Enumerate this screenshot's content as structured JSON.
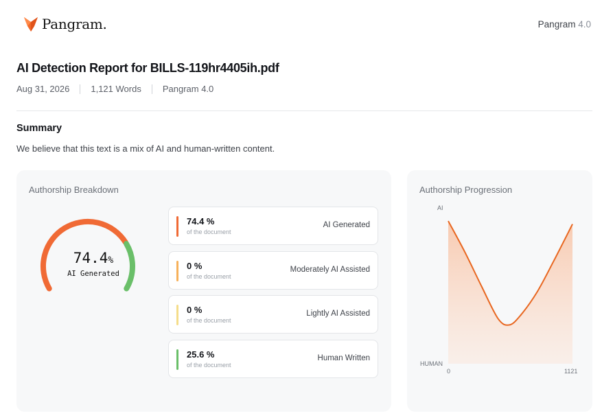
{
  "header": {
    "brand": "Pangram.",
    "version_name": "Pangram",
    "version_num": "4.0"
  },
  "report": {
    "title": "AI Detection Report for BILLS-119hr4405ih.pdf",
    "date": "Aug 31, 2026",
    "words": "1,121 Words",
    "model": "Pangram 4.0"
  },
  "summary": {
    "heading": "Summary",
    "text": "We believe that this text is a mix of AI and human-written content."
  },
  "breakdown": {
    "title": "Authorship Breakdown",
    "gauge_value": "74.4",
    "gauge_unit": "%",
    "gauge_label": "AI Generated",
    "ai_fraction": 0.744,
    "items": [
      {
        "value": "74.4 %",
        "sub": "of the document",
        "label": "AI Generated",
        "color": "#f06a35"
      },
      {
        "value": "0 %",
        "sub": "of the document",
        "label": "Moderately AI Assisted",
        "color": "#f7b15a"
      },
      {
        "value": "0 %",
        "sub": "of the document",
        "label": "Lightly AI Assisted",
        "color": "#f5dd8a"
      },
      {
        "value": "25.6 %",
        "sub": "of the document",
        "label": "Human Written",
        "color": "#6abf69"
      }
    ]
  },
  "progression": {
    "title": "Authorship Progression",
    "y_top_label": "AI",
    "y_bottom_label": "HUMAN",
    "x_min_label": "0",
    "x_max_label": "1121",
    "line_color": "#e8661f"
  },
  "chart_data": {
    "type": "area",
    "title": "Authorship Progression",
    "xlabel": "",
    "ylabel": "",
    "xlim": [
      0,
      1121
    ],
    "x": [
      0,
      150,
      300,
      450,
      550,
      650,
      800,
      950,
      1121
    ],
    "values": [
      0.92,
      0.72,
      0.5,
      0.29,
      0.25,
      0.31,
      0.46,
      0.66,
      0.9
    ]
  },
  "colors": {
    "accent": "#f06a35",
    "ai": "#f06a35",
    "human": "#6abf69",
    "card_bg": "#f7f8f9"
  }
}
